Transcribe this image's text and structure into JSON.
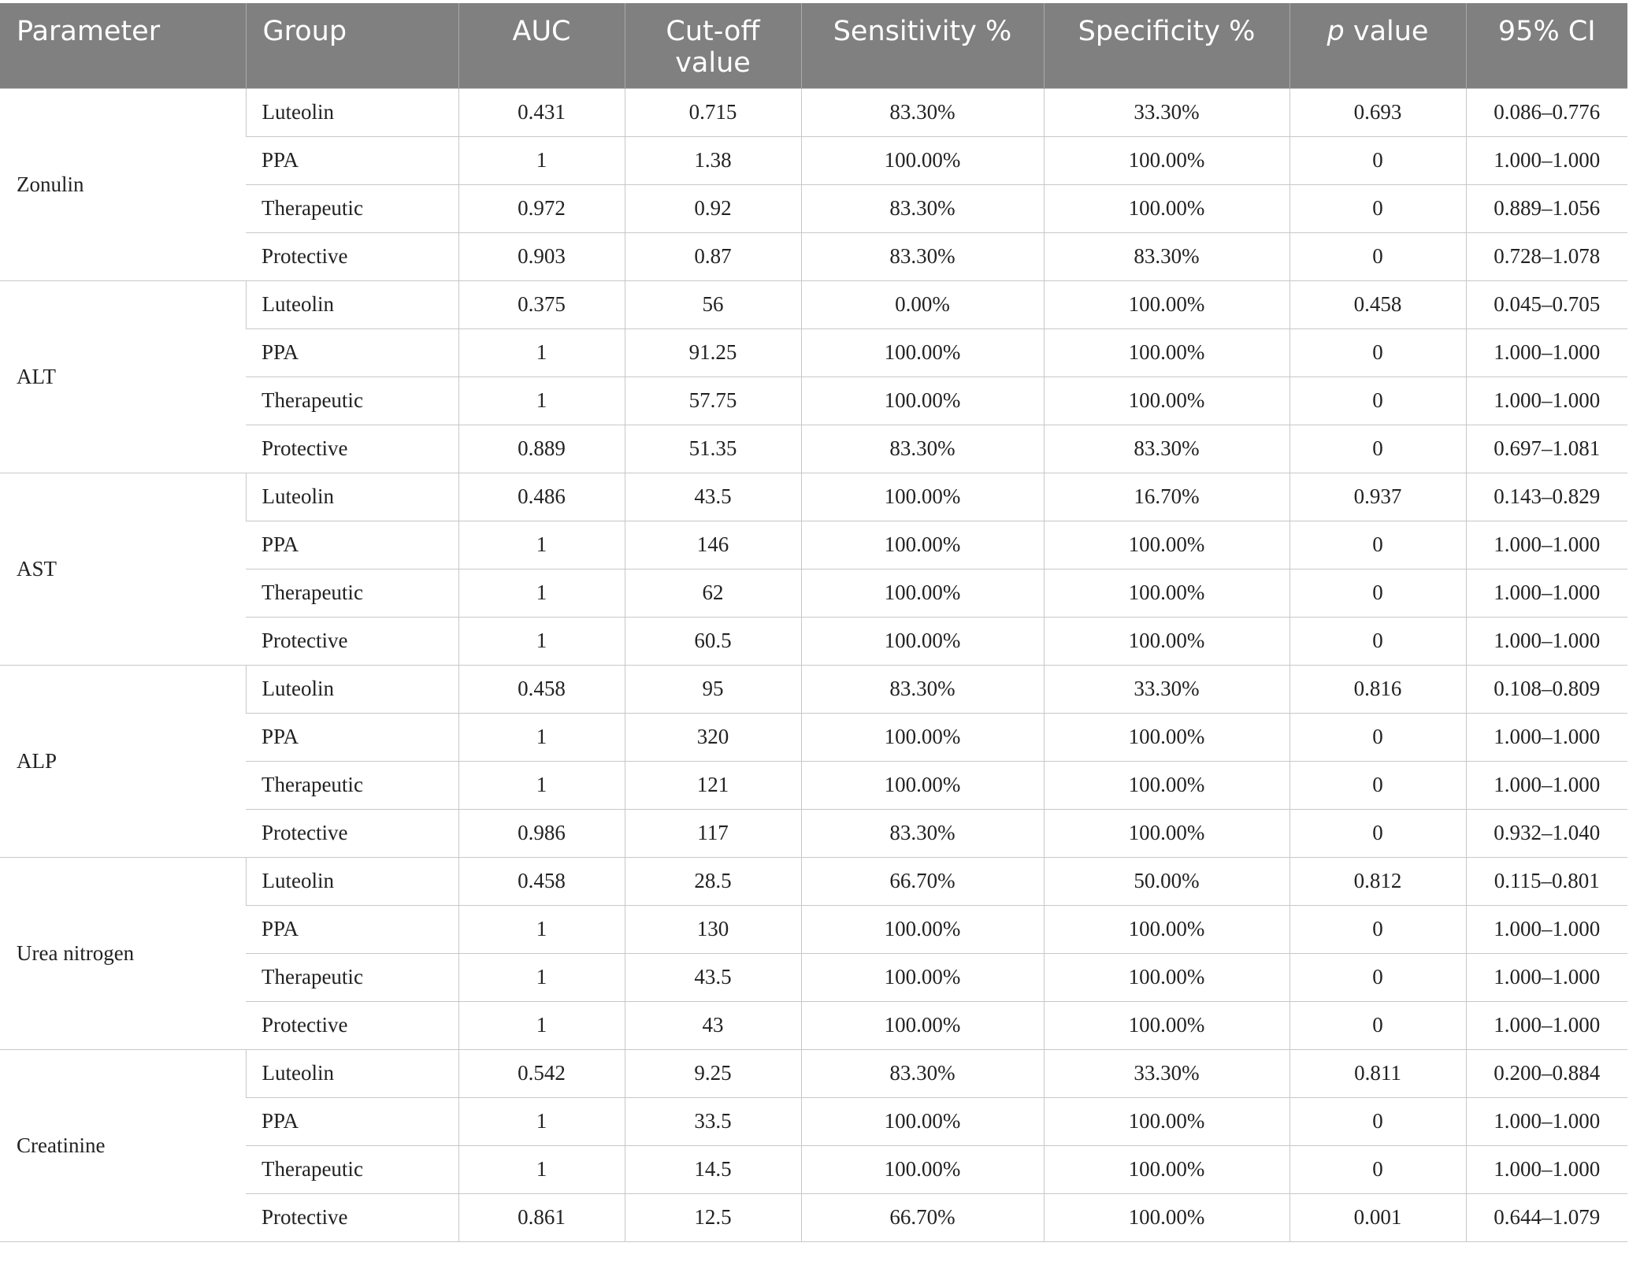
{
  "header": {
    "parameter": "Parameter",
    "group": "Group",
    "auc": "AUC",
    "cutoff_line1": "Cut-off",
    "cutoff_line2": "value",
    "sensitivity": "Sensitivity %",
    "specificity": "Specificity %",
    "p_italic": "p",
    "p_rest": " value",
    "ci": "95% CI"
  },
  "sections": [
    {
      "parameter": "Zonulin",
      "rows": [
        {
          "group": "Luteolin",
          "auc": "0.431",
          "cutoff": "0.715",
          "sensitivity": "83.30%",
          "specificity": "33.30%",
          "p": "0.693",
          "ci": "0.086–0.776"
        },
        {
          "group": "PPA",
          "auc": "1",
          "cutoff": "1.38",
          "sensitivity": "100.00%",
          "specificity": "100.00%",
          "p": "0",
          "ci": "1.000–1.000"
        },
        {
          "group": "Therapeutic",
          "auc": "0.972",
          "cutoff": "0.92",
          "sensitivity": "83.30%",
          "specificity": "100.00%",
          "p": "0",
          "ci": "0.889–1.056"
        },
        {
          "group": "Protective",
          "auc": "0.903",
          "cutoff": "0.87",
          "sensitivity": "83.30%",
          "specificity": "83.30%",
          "p": "0",
          "ci": "0.728–1.078"
        }
      ]
    },
    {
      "parameter": "ALT",
      "rows": [
        {
          "group": "Luteolin",
          "auc": "0.375",
          "cutoff": "56",
          "sensitivity": "0.00%",
          "specificity": "100.00%",
          "p": "0.458",
          "ci": "0.045–0.705"
        },
        {
          "group": "PPA",
          "auc": "1",
          "cutoff": "91.25",
          "sensitivity": "100.00%",
          "specificity": "100.00%",
          "p": "0",
          "ci": "1.000–1.000"
        },
        {
          "group": "Therapeutic",
          "auc": "1",
          "cutoff": "57.75",
          "sensitivity": "100.00%",
          "specificity": "100.00%",
          "p": "0",
          "ci": "1.000–1.000"
        },
        {
          "group": "Protective",
          "auc": "0.889",
          "cutoff": "51.35",
          "sensitivity": "83.30%",
          "specificity": "83.30%",
          "p": "0",
          "ci": "0.697–1.081"
        }
      ]
    },
    {
      "parameter": "AST",
      "rows": [
        {
          "group": "Luteolin",
          "auc": "0.486",
          "cutoff": "43.5",
          "sensitivity": "100.00%",
          "specificity": "16.70%",
          "p": "0.937",
          "ci": "0.143–0.829"
        },
        {
          "group": "PPA",
          "auc": "1",
          "cutoff": "146",
          "sensitivity": "100.00%",
          "specificity": "100.00%",
          "p": "0",
          "ci": "1.000–1.000"
        },
        {
          "group": "Therapeutic",
          "auc": "1",
          "cutoff": "62",
          "sensitivity": "100.00%",
          "specificity": "100.00%",
          "p": "0",
          "ci": "1.000–1.000"
        },
        {
          "group": "Protective",
          "auc": "1",
          "cutoff": "60.5",
          "sensitivity": "100.00%",
          "specificity": "100.00%",
          "p": "0",
          "ci": "1.000–1.000"
        }
      ]
    },
    {
      "parameter": "ALP",
      "rows": [
        {
          "group": "Luteolin",
          "auc": "0.458",
          "cutoff": "95",
          "sensitivity": "83.30%",
          "specificity": "33.30%",
          "p": "0.816",
          "ci": "0.108–0.809"
        },
        {
          "group": "PPA",
          "auc": "1",
          "cutoff": "320",
          "sensitivity": "100.00%",
          "specificity": "100.00%",
          "p": "0",
          "ci": "1.000–1.000"
        },
        {
          "group": "Therapeutic",
          "auc": "1",
          "cutoff": "121",
          "sensitivity": "100.00%",
          "specificity": "100.00%",
          "p": "0",
          "ci": "1.000–1.000"
        },
        {
          "group": "Protective",
          "auc": "0.986",
          "cutoff": "117",
          "sensitivity": "83.30%",
          "specificity": "100.00%",
          "p": "0",
          "ci": "0.932–1.040"
        }
      ]
    },
    {
      "parameter": "Urea nitrogen",
      "rows": [
        {
          "group": "Luteolin",
          "auc": "0.458",
          "cutoff": "28.5",
          "sensitivity": "66.70%",
          "specificity": "50.00%",
          "p": "0.812",
          "ci": "0.115–0.801"
        },
        {
          "group": "PPA",
          "auc": "1",
          "cutoff": "130",
          "sensitivity": "100.00%",
          "specificity": "100.00%",
          "p": "0",
          "ci": "1.000–1.000"
        },
        {
          "group": "Therapeutic",
          "auc": "1",
          "cutoff": "43.5",
          "sensitivity": "100.00%",
          "specificity": "100.00%",
          "p": "0",
          "ci": "1.000–1.000"
        },
        {
          "group": "Protective",
          "auc": "1",
          "cutoff": "43",
          "sensitivity": "100.00%",
          "specificity": "100.00%",
          "p": "0",
          "ci": "1.000–1.000"
        }
      ]
    },
    {
      "parameter": "Creatinine",
      "rows": [
        {
          "group": "Luteolin",
          "auc": "0.542",
          "cutoff": "9.25",
          "sensitivity": "83.30%",
          "specificity": "33.30%",
          "p": "0.811",
          "ci": "0.200–0.884"
        },
        {
          "group": "PPA",
          "auc": "1",
          "cutoff": "33.5",
          "sensitivity": "100.00%",
          "specificity": "100.00%",
          "p": "0",
          "ci": "1.000–1.000"
        },
        {
          "group": "Therapeutic",
          "auc": "1",
          "cutoff": "14.5",
          "sensitivity": "100.00%",
          "specificity": "100.00%",
          "p": "0",
          "ci": "1.000–1.000"
        },
        {
          "group": "Protective",
          "auc": "0.861",
          "cutoff": "12.5",
          "sensitivity": "66.70%",
          "specificity": "100.00%",
          "p": "0.001",
          "ci": "0.644–1.079"
        }
      ]
    }
  ]
}
